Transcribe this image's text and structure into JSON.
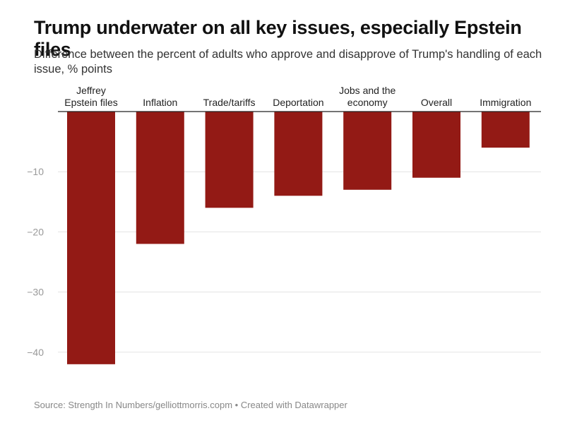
{
  "title": "Trump underwater on all key issues, especially Epstein files",
  "subtitle": "Difference between the percent of adults who approve and disapprove of Trump's handling of each issue, % points",
  "source": "Source: Strength In Numbers/gelliottmorris.copm • Created with Datawrapper",
  "colors": {
    "bar": "#931a15",
    "grid": "#e3e3e3",
    "axis": "#222222",
    "tick": "#999999"
  },
  "chart_data": {
    "type": "bar",
    "orientation": "vertical",
    "categories": [
      [
        "Jeffrey",
        "Epstein files"
      ],
      [
        "Inflation"
      ],
      [
        "Trade/tariffs"
      ],
      [
        "Deportation"
      ],
      [
        "Jobs and the",
        "economy"
      ],
      [
        "Overall"
      ],
      [
        "Immigration"
      ]
    ],
    "values": [
      -42,
      -22,
      -16,
      -14,
      -13,
      -11,
      -6
    ],
    "y_ticks": [
      -10,
      -20,
      -30,
      -40
    ],
    "y_tick_labels": [
      "−10",
      "−20",
      "−30",
      "−40"
    ],
    "ylim": [
      -44,
      0
    ],
    "grid": true,
    "category_labels_position": "top"
  }
}
